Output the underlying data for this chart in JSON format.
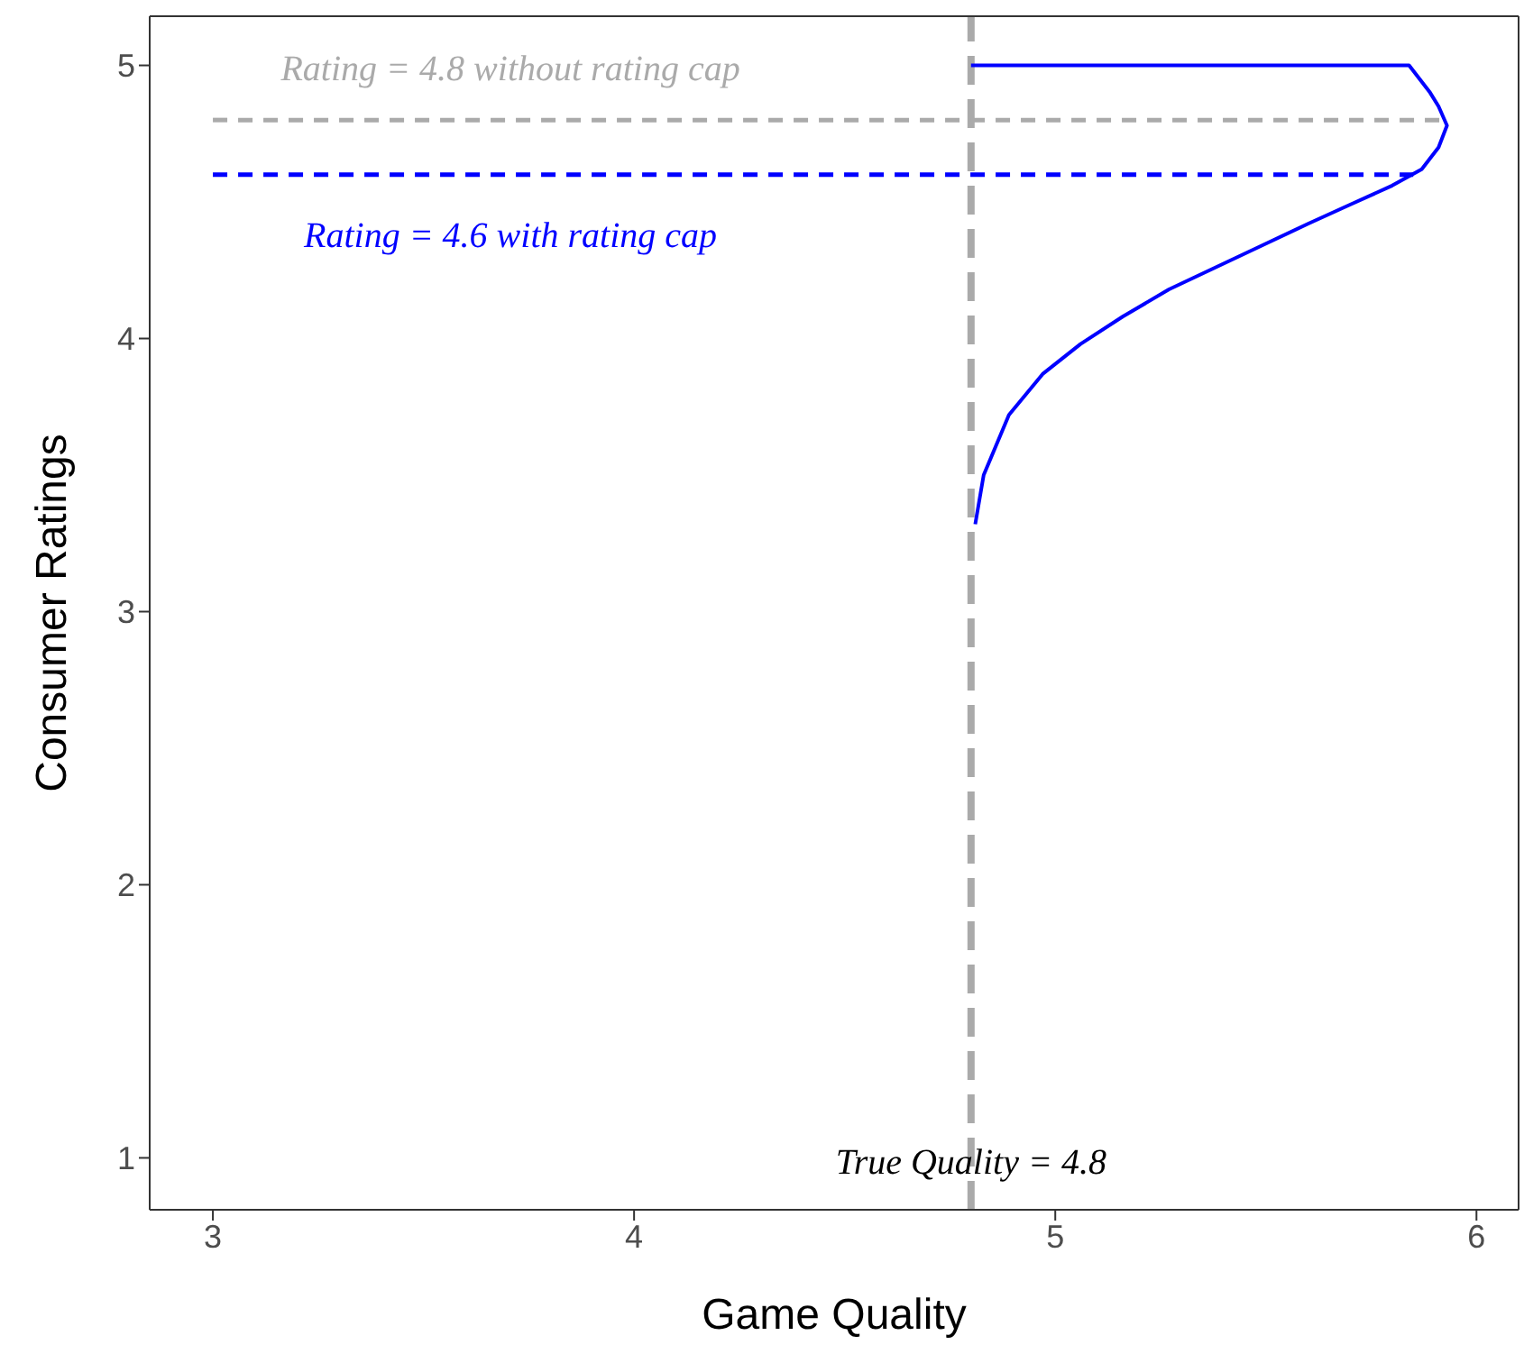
{
  "chart_data": {
    "type": "line",
    "xlabel": "Game Quality",
    "ylabel": "Consumer Ratings",
    "xlim": [
      2.85,
      6.1
    ],
    "ylim": [
      0.81,
      5.18
    ],
    "xticks": [
      3,
      4,
      5,
      6
    ],
    "yticks": [
      1,
      2,
      3,
      4,
      5
    ],
    "marker": "none",
    "series": [
      {
        "color": "#0000ff",
        "x": [
          4.81,
          4.83,
          4.89,
          4.97,
          5.06,
          5.16,
          5.27,
          5.38,
          5.49,
          5.6,
          5.7,
          5.8,
          5.87,
          5.91,
          5.93,
          5.91,
          5.89,
          5.84,
          5.6,
          5.3,
          5.0,
          4.8
        ],
        "values": [
          3.32,
          3.5,
          3.72,
          3.87,
          3.98,
          4.08,
          4.18,
          4.26,
          4.34,
          4.42,
          4.49,
          4.56,
          4.62,
          4.7,
          4.78,
          4.85,
          4.9,
          5.0,
          5.0,
          5.0,
          5.0,
          5.0
        ]
      },
      {
        "name": "Rating = 4.8 without rating cap",
        "color": "#aaaaaa",
        "line_style": "dashed",
        "x": [
          3,
          5.93
        ],
        "values": [
          4.8,
          4.8
        ]
      },
      {
        "name": "Rating = 4.6 with rating cap",
        "color": "#0000ff",
        "line_style": "dashed",
        "x": [
          3,
          5.85
        ],
        "values": [
          4.6,
          4.6
        ]
      }
    ],
    "ref_lines": [
      {
        "axis": "x",
        "value": 4.8,
        "label": "True Quality = 4.8",
        "color": "#aaaaaa",
        "line_style": "dashed"
      }
    ]
  }
}
